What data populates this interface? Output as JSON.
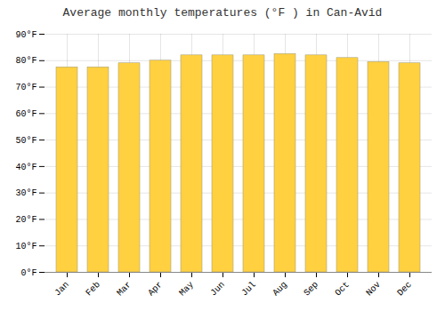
{
  "chart_data": {
    "type": "bar",
    "title": "Average monthly temperatures (°F ) in Can-Avid",
    "categories": [
      "Jan",
      "Feb",
      "Mar",
      "Apr",
      "May",
      "Jun",
      "Jul",
      "Aug",
      "Sep",
      "Oct",
      "Nov",
      "Dec"
    ],
    "values": [
      77.5,
      77.5,
      79.0,
      80.0,
      82.0,
      82.0,
      82.0,
      82.5,
      82.0,
      81.0,
      79.5,
      79.0
    ],
    "color": "#FFD040",
    "ylim": [
      0,
      90
    ],
    "yticks": [
      {
        "value": 0,
        "label": "0°F"
      },
      {
        "value": 10,
        "label": "10°F"
      },
      {
        "value": 20,
        "label": "20°F"
      },
      {
        "value": 30,
        "label": "30°F"
      },
      {
        "value": 40,
        "label": "40°F"
      },
      {
        "value": 50,
        "label": "50°F"
      },
      {
        "value": 60,
        "label": "60°F"
      },
      {
        "value": 70,
        "label": "70°F"
      },
      {
        "value": 80,
        "label": "80°F"
      },
      {
        "value": 90,
        "label": "90°F"
      }
    ],
    "grid": true
  }
}
